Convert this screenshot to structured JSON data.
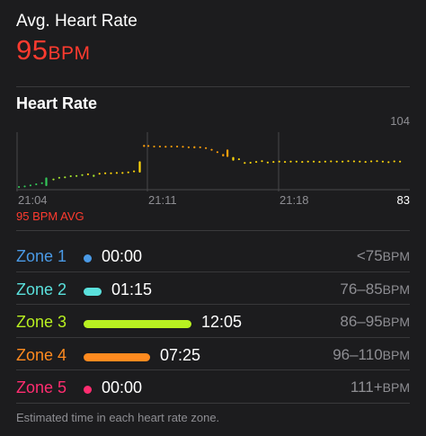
{
  "summary": {
    "label": "Avg. Heart Rate",
    "value": "95",
    "unit": "BPM"
  },
  "heart_rate": {
    "title": "Heart Rate",
    "avg_note": "95 BPM AVG",
    "colors": {
      "accent": "#ff3b2f",
      "low": "#34c759",
      "mid": "#ffd60a",
      "high": "#ff9f0a"
    }
  },
  "chart_data": {
    "type": "bar",
    "x_ticks": [
      "21:04",
      "21:11",
      "21:18"
    ],
    "y_ticks": [
      "104",
      "83"
    ],
    "ylim": [
      83,
      104
    ],
    "avg": 95,
    "points": [
      [
        0,
        83.6,
        84.0
      ],
      [
        0.32,
        83.8,
        84.2
      ],
      [
        0.64,
        84.0,
        84.6
      ],
      [
        0.96,
        84.6,
        85.0
      ],
      [
        1.28,
        84.9,
        85.4
      ],
      [
        1.52,
        84.0,
        87.2
      ],
      [
        1.92,
        86.4,
        86.8
      ],
      [
        2.24,
        86.8,
        87.4
      ],
      [
        2.56,
        87.2,
        87.6
      ],
      [
        2.88,
        87.5,
        88.0
      ],
      [
        3.2,
        87.6,
        88.1
      ],
      [
        3.52,
        88.0,
        88.4
      ],
      [
        3.84,
        88.3,
        88.7
      ],
      [
        4.16,
        87.4,
        88.2
      ],
      [
        4.48,
        88.4,
        88.9
      ],
      [
        4.8,
        88.7,
        89.1
      ],
      [
        5.12,
        88.5,
        89.1
      ],
      [
        5.44,
        88.8,
        89.2
      ],
      [
        5.76,
        88.7,
        89.2
      ],
      [
        6.08,
        89.0,
        89.4
      ],
      [
        6.4,
        89.3,
        89.8
      ],
      [
        6.72,
        89.0,
        93.2
      ],
      [
        6.96,
        98.5,
        99.3
      ],
      [
        7.2,
        98.8,
        99.2
      ],
      [
        7.52,
        98.6,
        99.0
      ],
      [
        7.84,
        98.6,
        99.0
      ],
      [
        8.16,
        98.5,
        98.9
      ],
      [
        8.48,
        98.6,
        99.0
      ],
      [
        8.8,
        98.6,
        99.0
      ],
      [
        9.12,
        98.5,
        98.9
      ],
      [
        9.44,
        98.3,
        98.7
      ],
      [
        9.76,
        98.0,
        98.8
      ],
      [
        10.08,
        98.3,
        98.7
      ],
      [
        10.4,
        97.8,
        98.4
      ],
      [
        10.72,
        97.2,
        97.8
      ],
      [
        11.04,
        96.3,
        96.9
      ],
      [
        11.36,
        95.0,
        95.9
      ],
      [
        11.6,
        94.8,
        97.6
      ],
      [
        11.92,
        93.4,
        94.8
      ],
      [
        12.24,
        93.9,
        94.3
      ],
      [
        12.56,
        92.3,
        92.9
      ],
      [
        12.88,
        92.6,
        93.0
      ],
      [
        13.2,
        92.7,
        93.3
      ],
      [
        13.52,
        93.2,
        93.6
      ],
      [
        13.84,
        92.5,
        93.1
      ],
      [
        14.16,
        92.9,
        93.3
      ],
      [
        14.48,
        93.0,
        93.4
      ],
      [
        14.8,
        92.9,
        93.3
      ],
      [
        15.12,
        93.0,
        93.4
      ],
      [
        15.44,
        93.0,
        93.4
      ],
      [
        15.76,
        92.9,
        93.3
      ],
      [
        16.08,
        93.0,
        93.4
      ],
      [
        16.4,
        93.0,
        93.4
      ],
      [
        16.72,
        92.9,
        93.3
      ],
      [
        17.04,
        93.0,
        93.4
      ],
      [
        17.36,
        93.1,
        93.5
      ],
      [
        17.68,
        92.8,
        93.4
      ],
      [
        18.0,
        93.0,
        93.4
      ],
      [
        18.32,
        93.2,
        93.6
      ],
      [
        18.64,
        93.1,
        93.5
      ],
      [
        18.96,
        93.0,
        93.4
      ],
      [
        19.28,
        92.9,
        93.3
      ],
      [
        19.6,
        93.1,
        93.5
      ],
      [
        19.92,
        93.2,
        93.6
      ],
      [
        20.24,
        93.0,
        93.4
      ],
      [
        20.56,
        92.8,
        93.2
      ],
      [
        20.88,
        93.1,
        93.5
      ],
      [
        21.2,
        93.0,
        93.4
      ]
    ]
  },
  "zones": [
    {
      "name": "Zone 1",
      "color": "#4a9ae6",
      "time": "00:00",
      "range": "<75",
      "unit": "BPM",
      "fraction": 0.0
    },
    {
      "name": "Zone 2",
      "color": "#5ae0dc",
      "time": "01:15",
      "range": "76–85",
      "unit": "BPM",
      "fraction": 0.1
    },
    {
      "name": "Zone 3",
      "color": "#b8f021",
      "time": "12:05",
      "range": "86–95",
      "unit": "BPM",
      "fraction": 1.0
    },
    {
      "name": "Zone 4",
      "color": "#ff8a1f",
      "time": "07:25",
      "range": "96–110",
      "unit": "BPM",
      "fraction": 0.62
    },
    {
      "name": "Zone 5",
      "color": "#ff2d70",
      "time": "00:00",
      "range": "111+",
      "unit": "BPM",
      "fraction": 0.0
    }
  ],
  "footnote": "Estimated time in each heart rate zone."
}
